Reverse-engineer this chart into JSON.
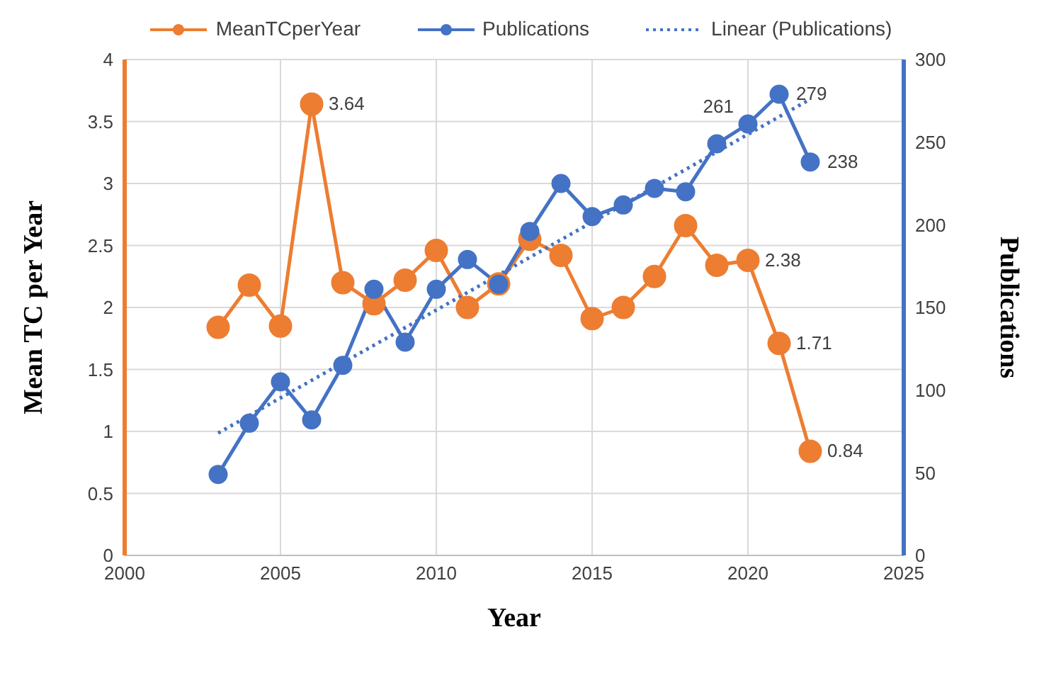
{
  "chart_data": {
    "type": "line",
    "xlabel": "Year",
    "ylabel": "Mean TC per Year",
    "y2label": "Publications",
    "x": [
      2003,
      2004,
      2005,
      2006,
      2007,
      2008,
      2009,
      2010,
      2011,
      2012,
      2013,
      2014,
      2015,
      2016,
      2017,
      2018,
      2019,
      2020,
      2021,
      2022
    ],
    "series": [
      {
        "name": "MeanTCperYear",
        "color": "#ed7d31",
        "axis": "y",
        "marker": "circle",
        "line_style": "solid",
        "values": [
          1.84,
          2.18,
          1.85,
          3.64,
          2.2,
          2.03,
          2.22,
          2.46,
          2.0,
          2.19,
          2.55,
          2.42,
          1.91,
          2.0,
          2.25,
          2.66,
          2.34,
          2.38,
          1.71,
          0.84
        ],
        "value_labels": [
          null,
          null,
          null,
          "3.64",
          null,
          null,
          null,
          null,
          null,
          null,
          null,
          null,
          null,
          null,
          null,
          null,
          null,
          "2.38",
          "1.71",
          "0.84"
        ]
      },
      {
        "name": "Publications",
        "color": "#4472c4",
        "axis": "y2",
        "marker": "circle",
        "line_style": "solid",
        "values": [
          49,
          80,
          105,
          82,
          115,
          161,
          129,
          161,
          179,
          164,
          196,
          225,
          205,
          212,
          222,
          220,
          249,
          261,
          279,
          238
        ],
        "value_labels": [
          null,
          null,
          null,
          null,
          null,
          null,
          null,
          null,
          null,
          null,
          null,
          null,
          null,
          null,
          null,
          null,
          null,
          "261",
          "279",
          "238"
        ]
      },
      {
        "name": "Linear (Publications)",
        "color": "#4472c4",
        "axis": "y2",
        "type": "line",
        "marker": "none",
        "line_style": "dotted",
        "x": [
          2003,
          2022
        ],
        "values": [
          74,
          276
        ]
      }
    ],
    "xlim": [
      2000,
      2025
    ],
    "xticks": [
      2000,
      2005,
      2010,
      2015,
      2020,
      2025
    ],
    "ylim": [
      0,
      4
    ],
    "yticks": [
      0,
      0.5,
      1,
      1.5,
      2,
      2.5,
      3,
      3.5,
      4
    ],
    "y2lim": [
      0,
      300
    ],
    "y2ticks": [
      0,
      50,
      100,
      150,
      200,
      250,
      300
    ],
    "grid": true,
    "legend": "top"
  }
}
